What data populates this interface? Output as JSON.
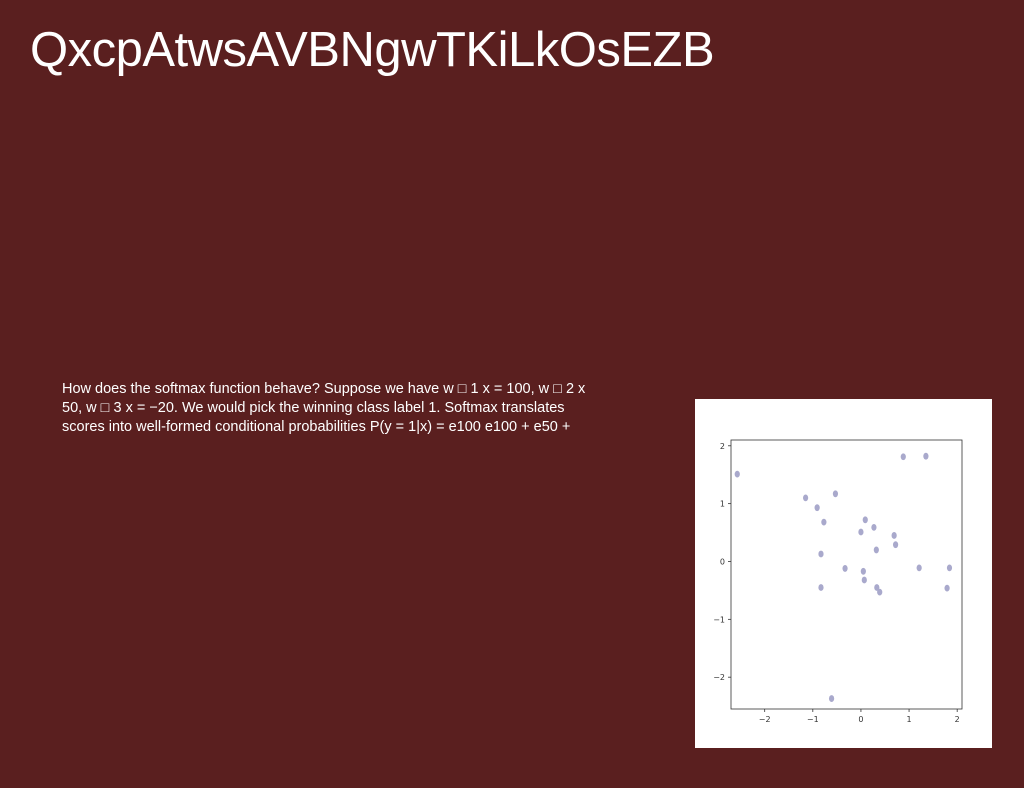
{
  "slide": {
    "title": "QxcpAtwsAVBNgwTKiLkOsEZB",
    "body_lines": [
      "How does the softmax function behave? Suppose we have w □ 1 x = 100, w □ 2 x",
      "50, w □ 3 x = −20. We would pick the winning class label 1. Softmax translates",
      "scores into well-formed conditional probabilities P(y = 1|x) = e100 e100 + e50 +"
    ]
  },
  "colors": {
    "background": "#5a1f1f",
    "text": "#ffffff",
    "point": "#a9a9cc"
  },
  "chart_data": {
    "type": "scatter",
    "title": "",
    "xlabel": "",
    "ylabel": "",
    "xlim": [
      -2.7,
      2.1
    ],
    "ylim": [
      -2.55,
      2.1
    ],
    "xticks": [
      -2,
      -1,
      0,
      1,
      2
    ],
    "yticks": [
      -2,
      -1,
      0,
      1,
      2
    ],
    "xtick_labels": [
      "−2",
      "−1",
      "0",
      "1",
      "2"
    ],
    "ytick_labels": [
      "−2",
      "−1",
      "0",
      "1",
      "2"
    ],
    "grid": false,
    "points": [
      {
        "x": -2.57,
        "y": 1.51
      },
      {
        "x": -1.15,
        "y": 1.1
      },
      {
        "x": -0.91,
        "y": 0.93
      },
      {
        "x": -0.53,
        "y": 1.17
      },
      {
        "x": -0.77,
        "y": 0.68
      },
      {
        "x": -0.83,
        "y": 0.13
      },
      {
        "x": -0.83,
        "y": -0.45
      },
      {
        "x": -0.33,
        "y": -0.12
      },
      {
        "x": 0.0,
        "y": 0.51
      },
      {
        "x": 0.09,
        "y": 0.72
      },
      {
        "x": 0.27,
        "y": 0.59
      },
      {
        "x": 0.32,
        "y": 0.2
      },
      {
        "x": 0.05,
        "y": -0.17
      },
      {
        "x": 0.07,
        "y": -0.32
      },
      {
        "x": 0.33,
        "y": -0.45
      },
      {
        "x": 0.39,
        "y": -0.53
      },
      {
        "x": 0.69,
        "y": 0.45
      },
      {
        "x": 0.72,
        "y": 0.29
      },
      {
        "x": 0.88,
        "y": 1.81
      },
      {
        "x": 1.35,
        "y": 1.82
      },
      {
        "x": 1.21,
        "y": -0.11
      },
      {
        "x": 1.84,
        "y": -0.11
      },
      {
        "x": 1.79,
        "y": -0.46
      },
      {
        "x": -0.61,
        "y": -2.37
      }
    ]
  }
}
